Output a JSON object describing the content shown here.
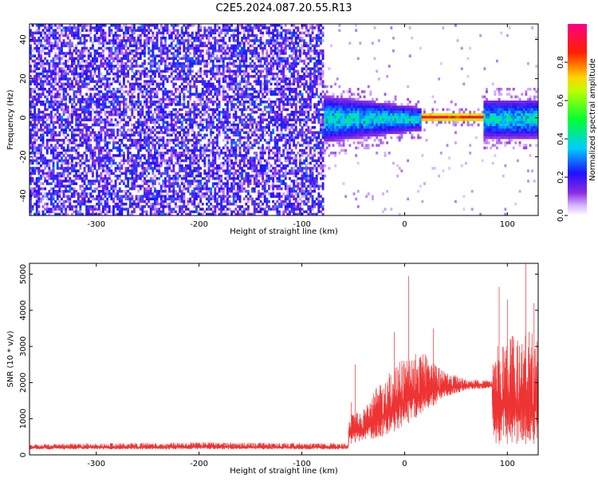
{
  "title": "C2E5.2024.087.20.55.R13",
  "colors": {
    "snr_line": "#ee3333",
    "frame": "#000000"
  },
  "chart_data": [
    {
      "type": "heatmap",
      "xlabel": "Height of straight line (km)",
      "ylabel": "Frequency (Hz)",
      "xlim": [
        -365,
        130
      ],
      "ylim": [
        -50,
        48
      ],
      "x_ticks": [
        -300,
        -200,
        -100,
        0,
        100
      ],
      "y_ticks": [
        -40,
        -20,
        0,
        20,
        40
      ],
      "x_tick_labels": [
        "-300",
        "-200",
        "-100",
        "0",
        "100"
      ],
      "y_tick_labels": [
        "-40",
        "-20",
        "0",
        "20",
        "40"
      ],
      "colorbar": {
        "label": "Normalized spectral amplitude",
        "range": [
          0,
          1
        ],
        "ticks": [
          0.0,
          0.2,
          0.4,
          0.6,
          0.8
        ],
        "tick_labels": [
          "0.0",
          "0.2",
          "0.4",
          "0.6",
          "0.8"
        ],
        "colormap": "white-purple-blue-cyan-green-yellow-red-magenta"
      },
      "regions": [
        {
          "x_range": [
            -365,
            -80
          ],
          "f_range": [
            -50,
            48
          ],
          "level": [
            0.05,
            0.25
          ],
          "pattern": "speckle"
        },
        {
          "x_range": [
            -80,
            15
          ],
          "f_center": 0,
          "f_halfwidth_start": 12,
          "f_halfwidth_end": 6,
          "level": [
            0.1,
            0.45
          ]
        },
        {
          "x_range": [
            15,
            75
          ],
          "f_center": 1,
          "f_halfwidth": 2.5,
          "level": [
            0.5,
            0.95
          ]
        },
        {
          "x_range": [
            75,
            130
          ],
          "f_center": 0,
          "f_halfwidth": 10,
          "level": [
            0.1,
            0.45
          ]
        }
      ]
    },
    {
      "type": "line",
      "xlabel": "Height of straight line (km)",
      "ylabel": "SNR (10 * v/v)",
      "xlim": [
        -365,
        130
      ],
      "ylim": [
        0,
        5300
      ],
      "x_ticks": [
        -300,
        -200,
        -100,
        0,
        100
      ],
      "y_ticks": [
        0,
        1000,
        2000,
        3000,
        4000,
        5000
      ],
      "x_tick_labels": [
        "-300",
        "-200",
        "-100",
        "0",
        "100"
      ],
      "y_tick_labels": [
        "0",
        "1000",
        "2000",
        "3000",
        "4000",
        "5000"
      ],
      "series_profile": [
        {
          "x": -365,
          "base": 150,
          "peak": 300
        },
        {
          "x": -200,
          "base": 150,
          "peak": 350
        },
        {
          "x": -55,
          "base": 150,
          "peak": 320
        },
        {
          "x": -54,
          "base": 300,
          "peak": 1100
        },
        {
          "x": -40,
          "base": 400,
          "peak": 1300
        },
        {
          "x": -20,
          "base": 500,
          "peak": 2200
        },
        {
          "x": 0,
          "base": 800,
          "peak": 2800
        },
        {
          "x": 20,
          "base": 1200,
          "peak": 2800
        },
        {
          "x": 40,
          "base": 1600,
          "peak": 2300
        },
        {
          "x": 60,
          "base": 1800,
          "peak": 2100
        },
        {
          "x": 85,
          "base": 1850,
          "peak": 2050
        },
        {
          "x": 86,
          "base": 300,
          "peak": 3200
        },
        {
          "x": 130,
          "base": 300,
          "peak": 3500
        }
      ],
      "spikes": [
        {
          "x": -52,
          "y": 1450
        },
        {
          "x": -48,
          "y": 2500
        },
        {
          "x": -10,
          "y": 3400
        },
        {
          "x": 4,
          "y": 4950
        },
        {
          "x": 28,
          "y": 3500
        },
        {
          "x": 92,
          "y": 4650
        },
        {
          "x": 100,
          "y": 4300
        },
        {
          "x": 118,
          "y": 5300
        },
        {
          "x": 126,
          "y": 4200
        }
      ]
    }
  ]
}
